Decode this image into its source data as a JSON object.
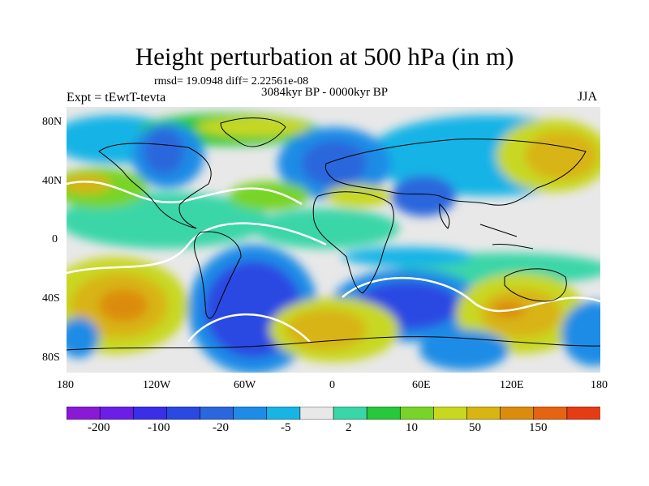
{
  "title": "Height perturbation at 500 hPa (in m)",
  "stats": "rmsd= 19.0948 diff= 2.22561e-08",
  "expt": "Expt = tEwtT-tevta",
  "period": "3084kyr BP - 0000kyr BP",
  "season": "JJA",
  "lat_labels": [
    "80N",
    "40N",
    "0",
    "40S",
    "80S"
  ],
  "lon_labels": [
    "180",
    "120W",
    "60W",
    "0",
    "60E",
    "120E",
    "180"
  ],
  "colorbar": {
    "colors": [
      "#8a19d6",
      "#6c1ee6",
      "#3a2ee6",
      "#2a48e2",
      "#2a66dc",
      "#1e8ce6",
      "#18b4e6",
      "#e8e8e8",
      "#3ad6a8",
      "#28c83c",
      "#78d428",
      "#c8d820",
      "#d8b414",
      "#dc8c0c",
      "#e46414",
      "#e43c14"
    ],
    "labels": [
      "-200",
      "-100",
      "-20",
      "-5",
      "2",
      "10",
      "50",
      "150"
    ]
  }
}
